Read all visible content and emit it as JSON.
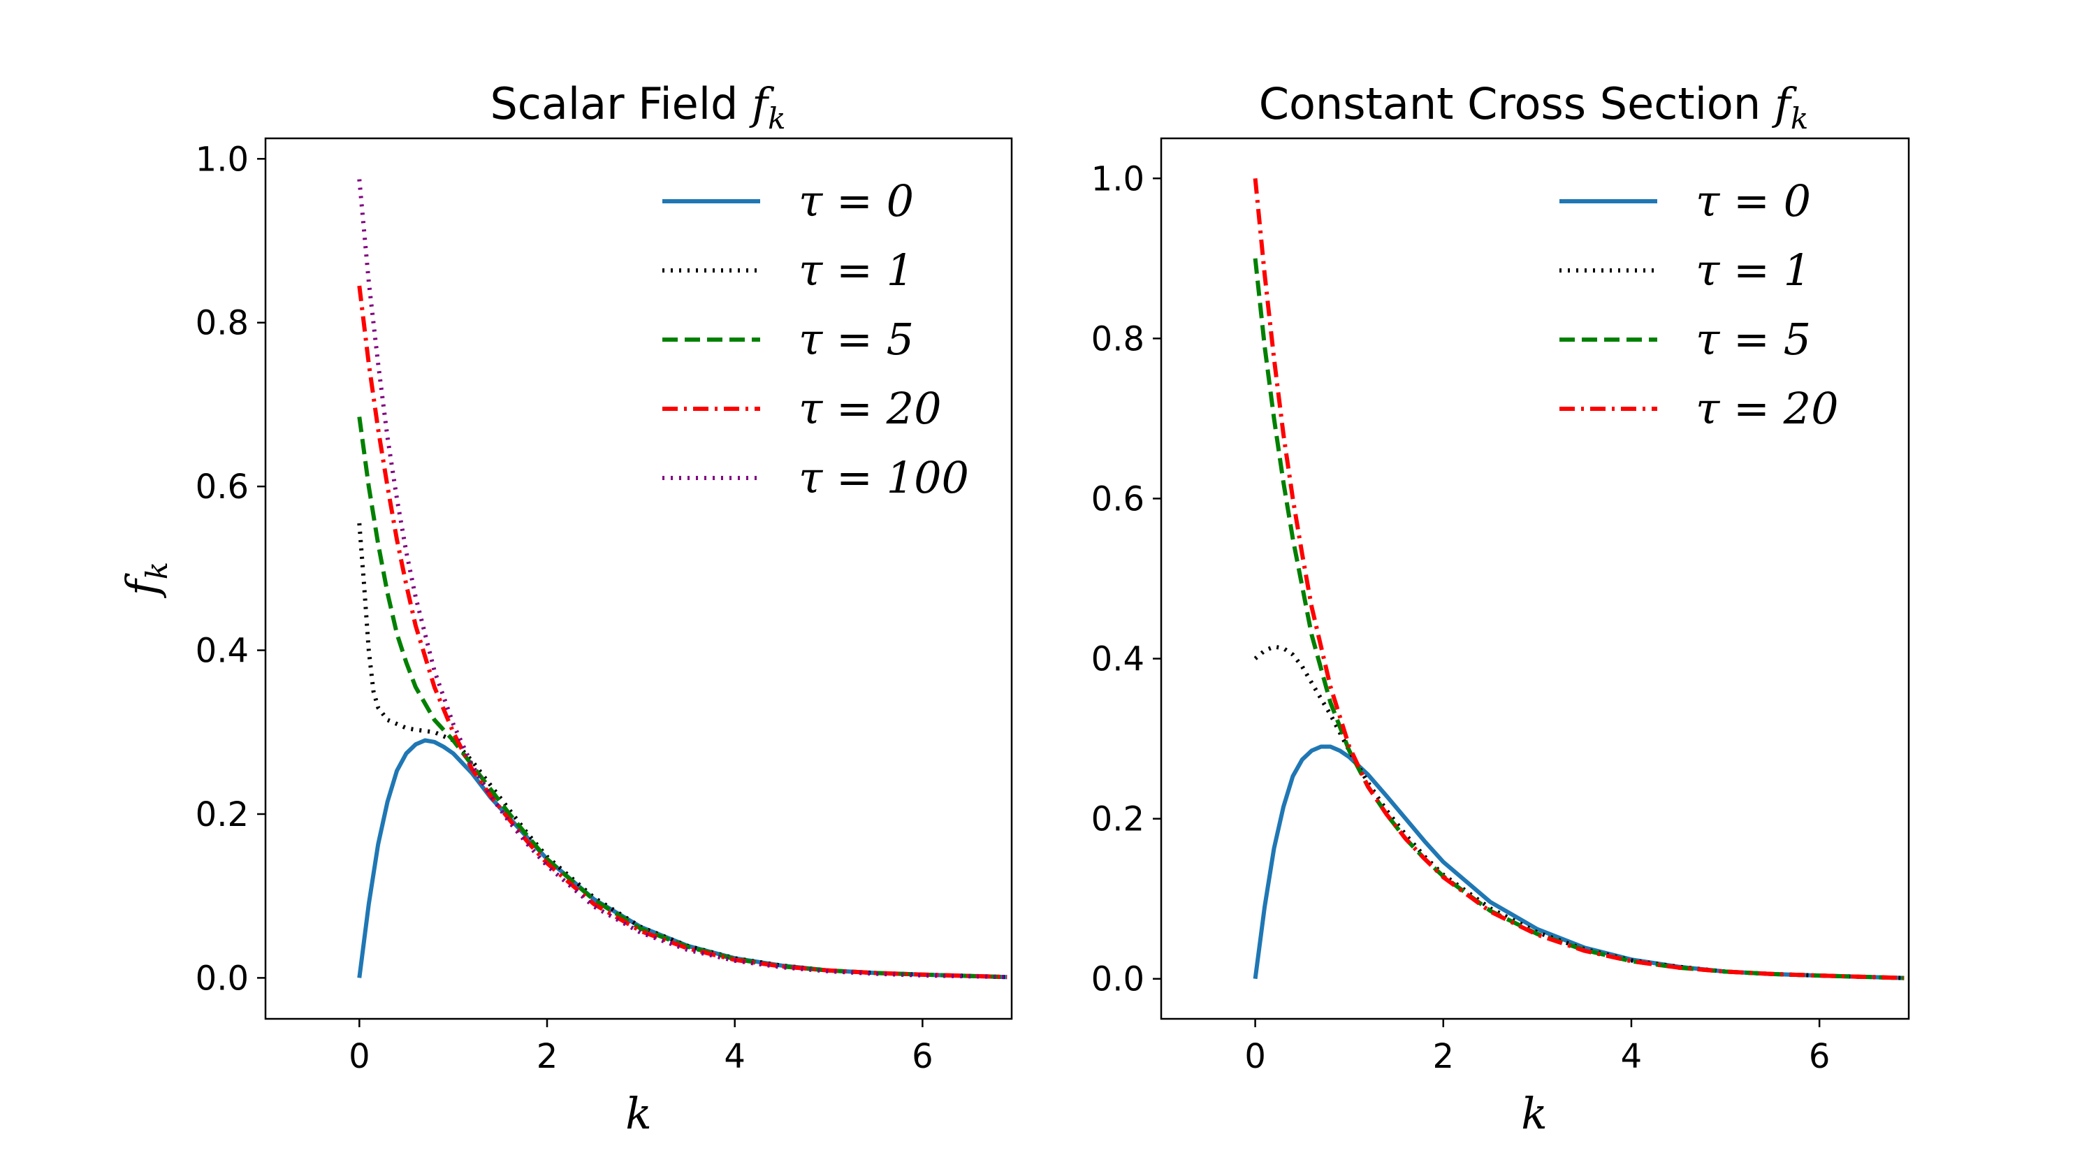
{
  "colors": {
    "tau0": "#1f77b4",
    "tau1": "#000000",
    "tau5": "#008000",
    "tau20": "#ff0000",
    "tau100": "#800080"
  },
  "chart_data": [
    {
      "type": "line",
      "title_main": "Scalar Field",
      "title_sym": "f",
      "title_sub": "k",
      "xlabel": "k",
      "ylabel_sym": "f",
      "ylabel_sub": "k",
      "xlim": [
        -1,
        6.95
      ],
      "ylim": [
        -0.05,
        1.025
      ],
      "xticks": [
        0,
        2,
        4,
        6
      ],
      "xtick_labels": [
        "0",
        "2",
        "4",
        "6"
      ],
      "yticks": [
        0.0,
        0.2,
        0.4,
        0.6,
        0.8,
        1.0
      ],
      "ytick_labels": [
        "0.0",
        "0.2",
        "0.4",
        "0.6",
        "0.8",
        "1.0"
      ],
      "legend_position": "top-right",
      "series": [
        {
          "name": "τ = 0",
          "style": "solid",
          "color": "#1f77b4",
          "x": [
            0,
            0.1,
            0.2,
            0.3,
            0.4,
            0.5,
            0.6,
            0.7,
            0.8,
            0.9,
            1.0,
            1.2,
            1.4,
            1.6,
            1.8,
            2.0,
            2.5,
            3.0,
            3.5,
            4.0,
            4.5,
            5.0,
            5.5,
            6.0,
            6.9
          ],
          "y": [
            0,
            0.09,
            0.163,
            0.215,
            0.253,
            0.274,
            0.285,
            0.29,
            0.288,
            0.282,
            0.274,
            0.25,
            0.22,
            0.195,
            0.17,
            0.145,
            0.096,
            0.062,
            0.039,
            0.024,
            0.015,
            0.009,
            0.006,
            0.004,
            0.001
          ]
        },
        {
          "name": "τ = 1",
          "style": "dotted",
          "color": "#000000",
          "x": [
            0,
            0.05,
            0.1,
            0.15,
            0.2,
            0.3,
            0.4,
            0.5,
            0.6,
            0.8,
            1.0,
            1.2,
            1.4,
            1.6,
            1.8,
            2.0,
            2.5,
            3.0,
            3.5,
            4.0,
            4.5,
            5.0,
            5.5,
            6.0,
            6.9
          ],
          "y": [
            0.555,
            0.48,
            0.4,
            0.35,
            0.33,
            0.315,
            0.31,
            0.305,
            0.303,
            0.3,
            0.29,
            0.265,
            0.235,
            0.205,
            0.175,
            0.148,
            0.098,
            0.062,
            0.039,
            0.024,
            0.015,
            0.009,
            0.006,
            0.004,
            0.001
          ]
        },
        {
          "name": "τ = 5",
          "style": "dashed",
          "color": "#008000",
          "x": [
            0,
            0.1,
            0.2,
            0.3,
            0.4,
            0.5,
            0.6,
            0.8,
            1.0,
            1.2,
            1.4,
            1.6,
            1.8,
            2.0,
            2.5,
            3.0,
            3.5,
            4.0,
            4.5,
            5.0,
            5.5,
            6.0,
            6.9
          ],
          "y": [
            0.685,
            0.6,
            0.53,
            0.47,
            0.42,
            0.385,
            0.355,
            0.315,
            0.29,
            0.26,
            0.23,
            0.2,
            0.172,
            0.145,
            0.095,
            0.06,
            0.038,
            0.023,
            0.014,
            0.009,
            0.006,
            0.004,
            0.001
          ]
        },
        {
          "name": "τ = 20",
          "style": "dashdot",
          "color": "#ff0000",
          "x": [
            0,
            0.1,
            0.2,
            0.3,
            0.4,
            0.5,
            0.6,
            0.8,
            1.0,
            1.2,
            1.4,
            1.6,
            1.8,
            2.0,
            2.5,
            3.0,
            3.5,
            4.0,
            4.5,
            5.0,
            5.5,
            6.0,
            6.9
          ],
          "y": [
            0.845,
            0.75,
            0.67,
            0.6,
            0.535,
            0.48,
            0.43,
            0.355,
            0.3,
            0.255,
            0.222,
            0.193,
            0.165,
            0.14,
            0.09,
            0.057,
            0.036,
            0.022,
            0.014,
            0.009,
            0.006,
            0.004,
            0.001
          ]
        },
        {
          "name": "τ = 100",
          "style": "dotted",
          "color": "#800080",
          "x": [
            0,
            0.1,
            0.2,
            0.3,
            0.4,
            0.5,
            0.6,
            0.8,
            1.0,
            1.2,
            1.4,
            1.6,
            1.8,
            2.0,
            2.5,
            3.0,
            3.5,
            4.0,
            4.5,
            5.0,
            5.5,
            6.0,
            6.9
          ],
          "y": [
            0.975,
            0.85,
            0.75,
            0.66,
            0.585,
            0.52,
            0.465,
            0.375,
            0.31,
            0.26,
            0.222,
            0.19,
            0.162,
            0.137,
            0.087,
            0.055,
            0.034,
            0.021,
            0.013,
            0.008,
            0.005,
            0.003,
            0.001
          ]
        }
      ]
    },
    {
      "type": "line",
      "title_main": "Constant Cross Section",
      "title_sym": "f",
      "title_sub": "k",
      "xlabel": "k",
      "ylabel_sym": "",
      "ylabel_sub": "",
      "xlim": [
        -1,
        6.95
      ],
      "ylim": [
        -0.05,
        1.05
      ],
      "xticks": [
        0,
        2,
        4,
        6
      ],
      "xtick_labels": [
        "0",
        "2",
        "4",
        "6"
      ],
      "yticks": [
        0.0,
        0.2,
        0.4,
        0.6,
        0.8,
        1.0
      ],
      "ytick_labels": [
        "0.0",
        "0.2",
        "0.4",
        "0.6",
        "0.8",
        "1.0"
      ],
      "legend_position": "top-right",
      "series": [
        {
          "name": "τ = 0",
          "style": "solid",
          "color": "#1f77b4",
          "x": [
            0,
            0.1,
            0.2,
            0.3,
            0.4,
            0.5,
            0.6,
            0.7,
            0.8,
            0.9,
            1.0,
            1.2,
            1.4,
            1.6,
            1.8,
            2.0,
            2.5,
            3.0,
            3.5,
            4.0,
            4.5,
            5.0,
            5.5,
            6.0,
            6.9
          ],
          "y": [
            0,
            0.09,
            0.163,
            0.215,
            0.253,
            0.274,
            0.285,
            0.29,
            0.29,
            0.285,
            0.277,
            0.255,
            0.228,
            0.2,
            0.172,
            0.146,
            0.096,
            0.062,
            0.039,
            0.024,
            0.015,
            0.009,
            0.006,
            0.004,
            0.001
          ]
        },
        {
          "name": "τ = 1",
          "style": "dotted",
          "color": "#000000",
          "x": [
            0,
            0.1,
            0.2,
            0.3,
            0.4,
            0.5,
            0.6,
            0.8,
            1.0,
            1.2,
            1.4,
            1.6,
            1.8,
            2.0,
            2.5,
            3.0,
            3.5,
            4.0,
            4.5,
            5.0,
            5.5,
            6.0,
            6.9
          ],
          "y": [
            0.4,
            0.41,
            0.415,
            0.413,
            0.405,
            0.39,
            0.37,
            0.33,
            0.285,
            0.245,
            0.21,
            0.18,
            0.153,
            0.13,
            0.088,
            0.058,
            0.037,
            0.023,
            0.015,
            0.009,
            0.006,
            0.004,
            0.001
          ]
        },
        {
          "name": "τ = 5",
          "style": "dashed",
          "color": "#008000",
          "x": [
            0,
            0.1,
            0.2,
            0.3,
            0.4,
            0.5,
            0.6,
            0.8,
            1.0,
            1.2,
            1.4,
            1.6,
            1.8,
            2.0,
            2.5,
            3.0,
            3.5,
            4.0,
            4.5,
            5.0,
            5.5,
            6.0,
            6.9
          ],
          "y": [
            0.9,
            0.79,
            0.7,
            0.62,
            0.55,
            0.49,
            0.43,
            0.345,
            0.285,
            0.24,
            0.205,
            0.175,
            0.15,
            0.128,
            0.085,
            0.056,
            0.036,
            0.022,
            0.014,
            0.009,
            0.006,
            0.004,
            0.001
          ]
        },
        {
          "name": "τ = 20",
          "style": "dashdot",
          "color": "#ff0000",
          "x": [
            0,
            0.1,
            0.2,
            0.3,
            0.4,
            0.5,
            0.6,
            0.8,
            1.0,
            1.2,
            1.4,
            1.6,
            1.8,
            2.0,
            2.5,
            3.0,
            3.5,
            4.0,
            4.5,
            5.0,
            5.5,
            6.0,
            6.9
          ],
          "y": [
            1.0,
            0.88,
            0.775,
            0.68,
            0.6,
            0.53,
            0.465,
            0.365,
            0.29,
            0.24,
            0.205,
            0.175,
            0.15,
            0.127,
            0.084,
            0.055,
            0.035,
            0.022,
            0.014,
            0.009,
            0.006,
            0.004,
            0.001
          ]
        }
      ]
    }
  ]
}
